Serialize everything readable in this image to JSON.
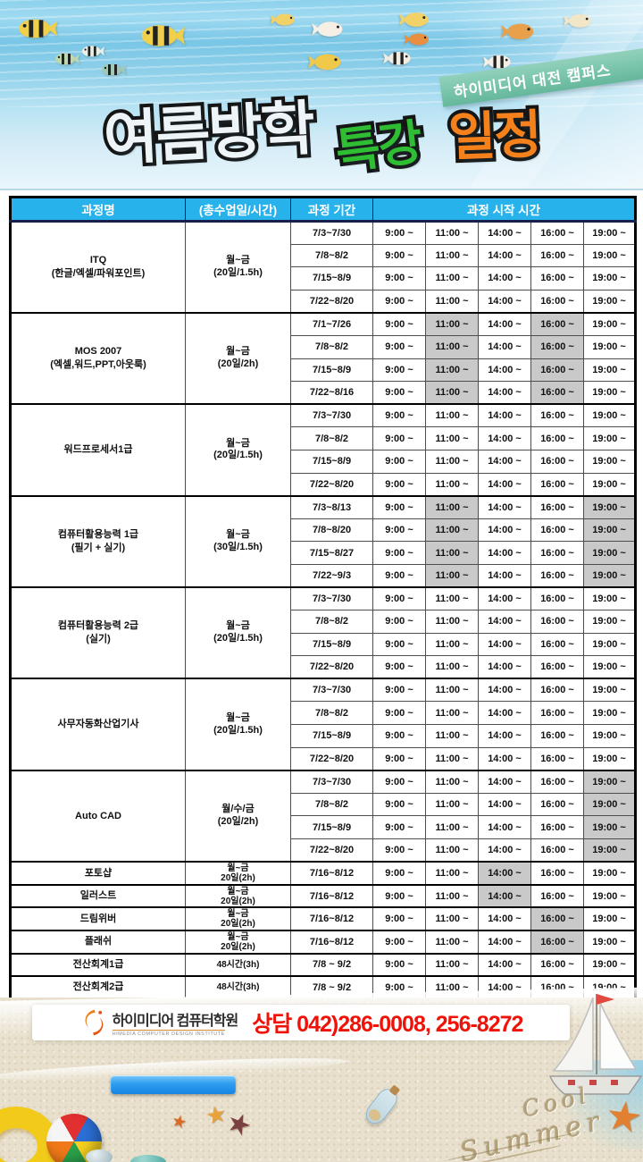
{
  "badge": {
    "label": "하이미디어 대전 캠퍼스"
  },
  "title": {
    "part1": "여름방학",
    "part2": "특강",
    "part3": "일정"
  },
  "table": {
    "headers": {
      "course": "과정명",
      "schedule": "(총수업일/시간)",
      "period": "과정 기간",
      "start_times": "과정 시작 시간"
    },
    "times": [
      "9:00 ~",
      "11:00 ~",
      "14:00 ~",
      "16:00 ~",
      "19:00 ~"
    ],
    "sections": [
      {
        "course_lines": [
          "ITQ",
          "(한글/엑셀/파워포인트)"
        ],
        "schedule_lines": [
          "월~금",
          "(20일/1.5h)"
        ],
        "highlight": [],
        "rows": [
          {
            "period": "7/3~7/30"
          },
          {
            "period": "7/8~8/2"
          },
          {
            "period": "7/15~8/9"
          },
          {
            "period": "7/22~8/20"
          }
        ]
      },
      {
        "course_lines": [
          "MOS 2007",
          "(엑셀,워드,PPT,아웃룩)"
        ],
        "schedule_lines": [
          "월~금",
          "(20일/2h)"
        ],
        "highlight": [
          1,
          3
        ],
        "rows": [
          {
            "period": "7/1~7/26"
          },
          {
            "period": "7/8~8/2"
          },
          {
            "period": "7/15~8/9"
          },
          {
            "period": "7/22~8/16"
          }
        ]
      },
      {
        "course_lines": [
          "워드프로세서1급"
        ],
        "schedule_lines": [
          "월~금",
          "(20일/1.5h)"
        ],
        "highlight": [],
        "rows": [
          {
            "period": "7/3~7/30"
          },
          {
            "period": "7/8~8/2"
          },
          {
            "period": "7/15~8/9"
          },
          {
            "period": "7/22~8/20"
          }
        ]
      },
      {
        "course_lines": [
          "컴퓨터활용능력 1급",
          "(필기 + 실기)"
        ],
        "schedule_lines": [
          "월~금",
          "(30일/1.5h)"
        ],
        "highlight": [
          1,
          4
        ],
        "rows": [
          {
            "period": "7/3~8/13"
          },
          {
            "period": "7/8~8/20"
          },
          {
            "period": "7/15~8/27"
          },
          {
            "period": "7/22~9/3"
          }
        ]
      },
      {
        "course_lines": [
          "컴퓨터활용능력 2급",
          "(실기)"
        ],
        "schedule_lines": [
          "월~금",
          "(20일/1.5h)"
        ],
        "highlight": [],
        "rows": [
          {
            "period": "7/3~7/30"
          },
          {
            "period": "7/8~8/2"
          },
          {
            "period": "7/15~8/9"
          },
          {
            "period": "7/22~8/20"
          }
        ]
      },
      {
        "course_lines": [
          "사무자동화산업기사"
        ],
        "schedule_lines": [
          "월~금",
          "(20일/1.5h)"
        ],
        "highlight": [],
        "rows": [
          {
            "period": "7/3~7/30"
          },
          {
            "period": "7/8~8/2"
          },
          {
            "period": "7/15~8/9"
          },
          {
            "period": "7/22~8/20"
          }
        ]
      },
      {
        "course_lines": [
          "Auto CAD"
        ],
        "schedule_lines": [
          "월/수/금",
          "(20일/2h)"
        ],
        "highlight": [
          4
        ],
        "rows": [
          {
            "period": "7/3~7/30"
          },
          {
            "period": "7/8~8/2"
          },
          {
            "period": "7/15~8/9"
          },
          {
            "period": "7/22~8/20"
          }
        ]
      },
      {
        "course_lines": [
          "포토샵"
        ],
        "schedule_lines": [
          "월~금",
          "20일(2h)"
        ],
        "highlight": [
          2
        ],
        "rows": [
          {
            "period": "7/16~8/12"
          }
        ]
      },
      {
        "course_lines": [
          "일러스트"
        ],
        "schedule_lines": [
          "월~금",
          "20일(2h)"
        ],
        "highlight": [
          2
        ],
        "rows": [
          {
            "period": "7/16~8/12"
          }
        ]
      },
      {
        "course_lines": [
          "드림위버"
        ],
        "schedule_lines": [
          "월~금",
          "20일(2h)"
        ],
        "highlight": [
          3
        ],
        "rows": [
          {
            "period": "7/16~8/12"
          }
        ]
      },
      {
        "course_lines": [
          "플래쉬"
        ],
        "schedule_lines": [
          "월~금",
          "20일(2h)"
        ],
        "highlight": [
          3
        ],
        "rows": [
          {
            "period": "7/16~8/12"
          }
        ]
      },
      {
        "course_lines": [
          "전산회계1급"
        ],
        "schedule_lines": [
          "48시간(3h)"
        ],
        "highlight": [],
        "rows": [
          {
            "period": "7/8 ~ 9/2"
          }
        ]
      },
      {
        "course_lines": [
          "전산회계2급"
        ],
        "schedule_lines": [
          "48시간(3h)"
        ],
        "highlight": [],
        "rows": [
          {
            "period": "7/8 ~ 9/2"
          }
        ]
      }
    ]
  },
  "footer": {
    "logo_text": "하이미디어 컴퓨터학원",
    "logo_sub": "HIMEDIA COMPUTER DESIGN INSTITUTE",
    "phone": "상담 042)286-0008, 256-8272"
  },
  "sand_writing": {
    "line1": "Cool",
    "line2": "Summer"
  },
  "icons": {
    "fish": "fish-icon",
    "starfish": "starfish-icon",
    "sailboat": "sailboat-icon",
    "beach_ball": "beach-ball-icon",
    "swim_ring": "swim-ring-icon",
    "bottle": "message-bottle-icon",
    "logo": "himedia-logo-icon"
  },
  "colors": {
    "header_bg": "#27b2ec",
    "highlight_cell": "#c9c9c9",
    "phone_red": "#ee1209",
    "badge_bg": "#79c4ab",
    "title_green": "#2fbe33",
    "title_orange": "#f5811c",
    "blue_bar": "#2f9df0"
  },
  "starfish_glyph": "★"
}
